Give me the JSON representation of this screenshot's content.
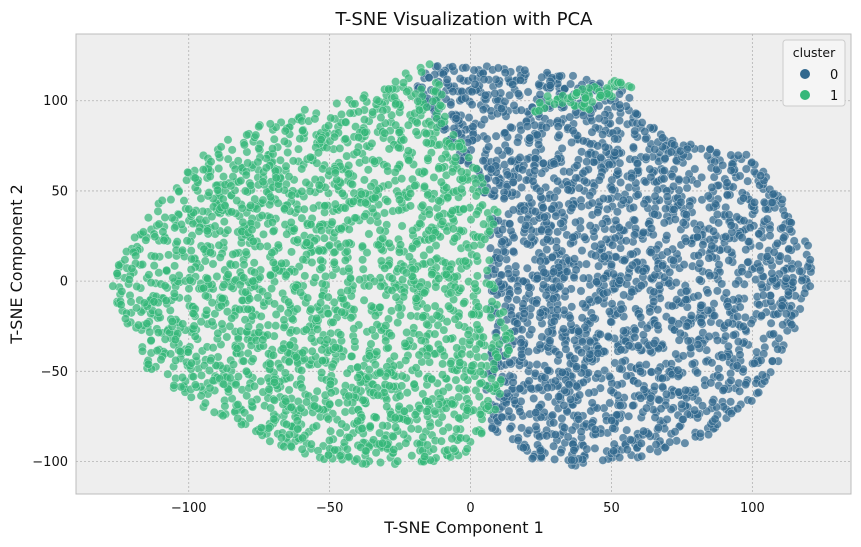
{
  "chart_data": {
    "type": "scatter",
    "title": "T-SNE Visualization with PCA",
    "xlabel": "T-SNE Component 1",
    "ylabel": "T-SNE Component 2",
    "xlim": [
      -140,
      135
    ],
    "ylim": [
      -118,
      137
    ],
    "xticks": [
      -100,
      -50,
      0,
      50,
      100
    ],
    "yticks": [
      -100,
      -50,
      0,
      50,
      100
    ],
    "xtick_labels": [
      "−100",
      "−50",
      "0",
      "50",
      "100"
    ],
    "ytick_labels": [
      "−100",
      "−50",
      "0",
      "50",
      "100"
    ],
    "grid": true,
    "legend": {
      "title": "cluster",
      "placement": "top-right",
      "entries": [
        {
          "label": "0",
          "color": "#31688e"
        },
        {
          "label": "1",
          "color": "#35b779"
        }
      ]
    },
    "series": [
      {
        "name": "0",
        "color": "#31688e",
        "region_outline": [
          [
            -10,
            122
          ],
          [
            20,
            118
          ],
          [
            45,
            112
          ],
          [
            55,
            108
          ],
          [
            60,
            90
          ],
          [
            70,
            80
          ],
          [
            100,
            70
          ],
          [
            110,
            50
          ],
          [
            120,
            20
          ],
          [
            122,
            0
          ],
          [
            115,
            -30
          ],
          [
            105,
            -60
          ],
          [
            95,
            -75
          ],
          [
            80,
            -90
          ],
          [
            60,
            -98
          ],
          [
            40,
            -103
          ],
          [
            20,
            -98
          ],
          [
            8,
            -85
          ],
          [
            5,
            -60
          ],
          [
            8,
            -30
          ],
          [
            5,
            0
          ],
          [
            8,
            40
          ],
          [
            -5,
            70
          ],
          [
            -15,
            90
          ],
          [
            -20,
            105
          ],
          [
            -15,
            118
          ]
        ]
      },
      {
        "name": "1",
        "color": "#35b779",
        "region_outline": [
          [
            -15,
            122
          ],
          [
            -30,
            110
          ],
          [
            -45,
            100
          ],
          [
            -60,
            95
          ],
          [
            -80,
            85
          ],
          [
            -95,
            70
          ],
          [
            -105,
            55
          ],
          [
            -115,
            35
          ],
          [
            -125,
            10
          ],
          [
            -128,
            -5
          ],
          [
            -120,
            -30
          ],
          [
            -115,
            -50
          ],
          [
            -100,
            -65
          ],
          [
            -85,
            -80
          ],
          [
            -70,
            -92
          ],
          [
            -50,
            -100
          ],
          [
            -30,
            -103
          ],
          [
            -15,
            -103
          ],
          [
            0,
            -95
          ],
          [
            10,
            -70
          ],
          [
            15,
            -30
          ],
          [
            8,
            0
          ],
          [
            10,
            40
          ],
          [
            0,
            70
          ],
          [
            -10,
            95
          ],
          [
            -10,
            115
          ]
        ],
        "extra_points": [
          [
            30,
            100
          ],
          [
            35,
            100
          ],
          [
            40,
            102
          ],
          [
            45,
            105
          ],
          [
            50,
            108
          ],
          [
            55,
            110
          ],
          [
            42,
            98
          ],
          [
            38,
            104
          ],
          [
            48,
            104
          ],
          [
            25,
            96
          ]
        ]
      }
    ]
  }
}
